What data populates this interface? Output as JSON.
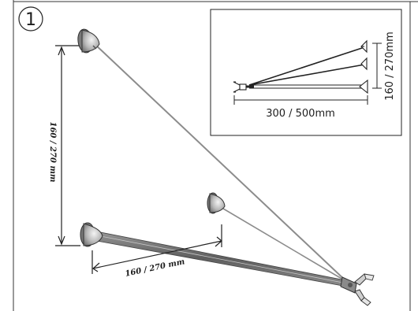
{
  "figure": {
    "step_number": "1"
  },
  "main_drawing": {
    "vertical_dimension": "160 / 270 mm",
    "horizontal_dimension": "160 / 270 mm"
  },
  "inset": {
    "horizontal_dimension": "300 / 500mm",
    "vertical_dimension": "160 / 270mm"
  }
}
